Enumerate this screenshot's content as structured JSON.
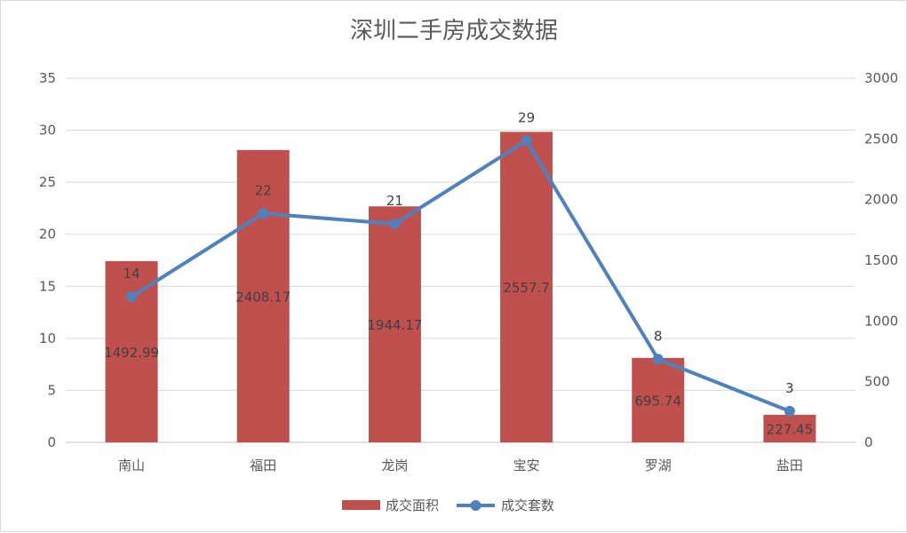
{
  "chart_data": {
    "type": "bar",
    "title": "深圳二手房成交数据",
    "categories": [
      "南山",
      "福田",
      "龙岗",
      "宝安",
      "罗湖",
      "盐田"
    ],
    "series": [
      {
        "name": "成交面积",
        "type": "bar",
        "axis": "right",
        "values": [
          1492.99,
          2408.17,
          1944.17,
          2557.7,
          695.74,
          227.45
        ],
        "labels": [
          "1492.99",
          "2408.17",
          "1944.17",
          "2557.7",
          "695.74",
          "227.45"
        ],
        "color": "#c0504d"
      },
      {
        "name": "成交套数",
        "type": "line",
        "axis": "left",
        "values": [
          14,
          22,
          21,
          29,
          8,
          3
        ],
        "labels": [
          "14",
          "22",
          "21",
          "29",
          "8",
          "3"
        ],
        "color": "#4f81bd"
      }
    ],
    "y_left": {
      "min": 0,
      "max": 35,
      "ticks": [
        "0",
        "5",
        "10",
        "15",
        "20",
        "25",
        "30",
        "35"
      ]
    },
    "y_right": {
      "min": 0,
      "max": 3000,
      "ticks": [
        "0",
        "500",
        "1000",
        "1500",
        "2000",
        "2500",
        "3000"
      ]
    },
    "grid": true,
    "legend_position": "bottom"
  }
}
